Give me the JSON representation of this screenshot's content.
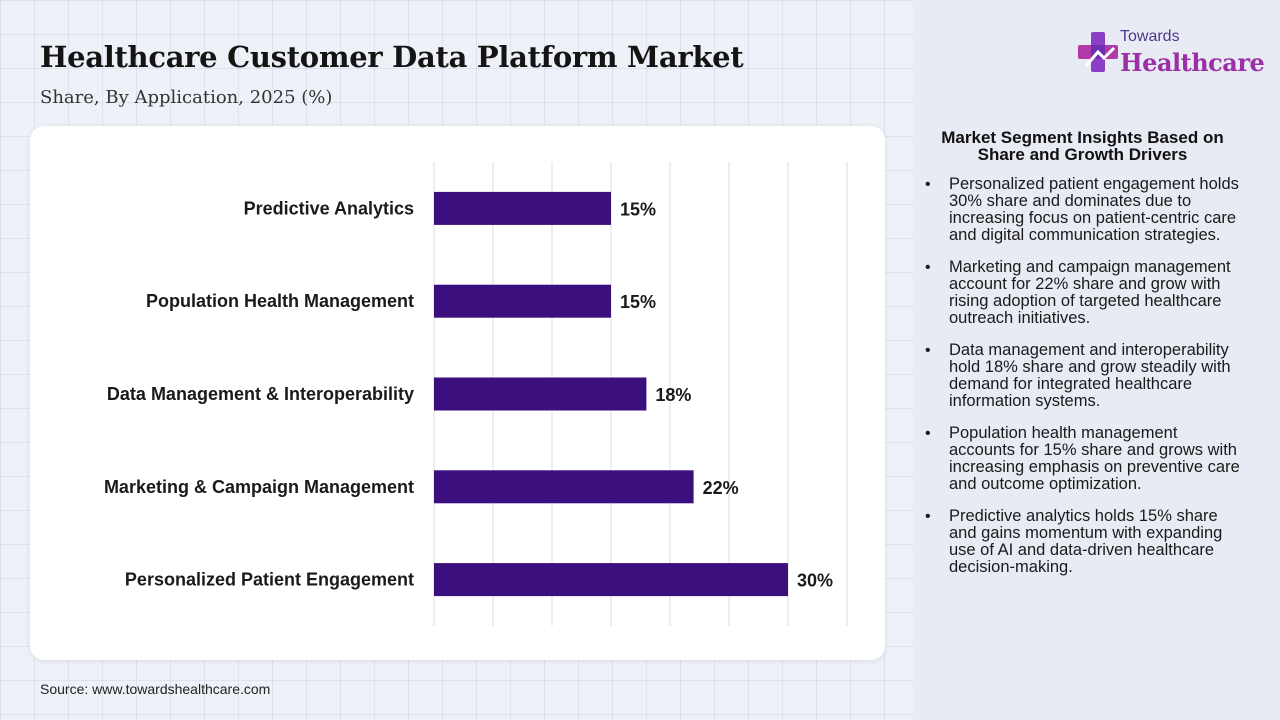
{
  "header": {
    "title": "Healthcare Customer Data Platform Market",
    "subtitle": "Share, By Application, 2025 (%)"
  },
  "brand": {
    "line1": "Towards",
    "line2": "Healthcare",
    "icon": "medical-cross-icon",
    "colors": {
      "primary": "#9b2fa8",
      "secondary": "#4a3a8a"
    }
  },
  "source": "Source: www.towardshealthcare.com",
  "insights": {
    "title": "Market Segment Insights Based on Share and Growth Drivers",
    "items": [
      "Personalized patient engagement holds 30% share and dominates due to increasing focus on patient-centric care and digital communication strategies.",
      "Marketing and campaign management account for 22% share and grow with rising adoption of targeted healthcare outreach initiatives.",
      "Data management and interoperability hold 18% share and grow steadily with demand for integrated healthcare information systems.",
      "Population health management accounts for 15% share and grows with increasing emphasis on preventive care and outcome optimization.",
      "Predictive analytics holds 15% share and gains momentum with expanding use of AI and data-driven healthcare decision-making."
    ]
  },
  "chart_data": {
    "type": "bar",
    "orientation": "horizontal",
    "categories": [
      "Predictive Analytics",
      "Population Health Management",
      "Data Management & Interoperability",
      "Marketing & Campaign Management",
      "Personalized Patient Engagement"
    ],
    "values": [
      15,
      15,
      18,
      22,
      30
    ],
    "data_labels": [
      "15%",
      "15%",
      "18%",
      "22%",
      "30%"
    ],
    "unit": "%",
    "xlim": [
      0,
      35
    ],
    "grid": true,
    "bar_color": "#3b0f7e"
  }
}
